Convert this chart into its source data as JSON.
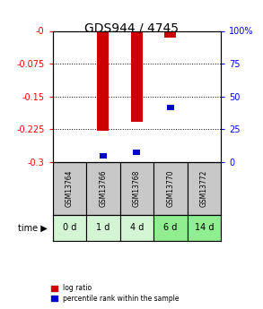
{
  "title": "GDS944 / 4745",
  "samples": [
    "GSM13764",
    "GSM13766",
    "GSM13768",
    "GSM13770",
    "GSM13772"
  ],
  "time_labels": [
    "0 d",
    "1 d",
    "4 d",
    "6 d",
    "14 d"
  ],
  "log_ratios": [
    0.0,
    -0.228,
    -0.208,
    -0.015,
    0.0
  ],
  "percentile_ranks_left": [
    null,
    -0.285,
    -0.278,
    -0.175,
    null
  ],
  "ylim_left": [
    -0.3,
    0.0
  ],
  "ylim_right": [
    0,
    100
  ],
  "yticks_left": [
    0,
    -0.075,
    -0.15,
    -0.225,
    -0.3
  ],
  "ytick_labels_left": [
    "-0",
    "-0.075",
    "-0.15",
    "-0.225",
    "-0.3"
  ],
  "yticks_right": [
    0,
    25,
    50,
    75,
    100
  ],
  "ytick_labels_right": [
    "0",
    "25",
    "50",
    "75",
    "100%"
  ],
  "bar_color": "#cc0000",
  "percentile_color": "#0000cc",
  "sample_bg_color": "#c8c8c8",
  "time_bg_colors": [
    "#d4f5d4",
    "#d4f5d4",
    "#d4f5d4",
    "#90ee90",
    "#90ee90"
  ],
  "bar_width": 0.35,
  "title_fontsize": 10
}
